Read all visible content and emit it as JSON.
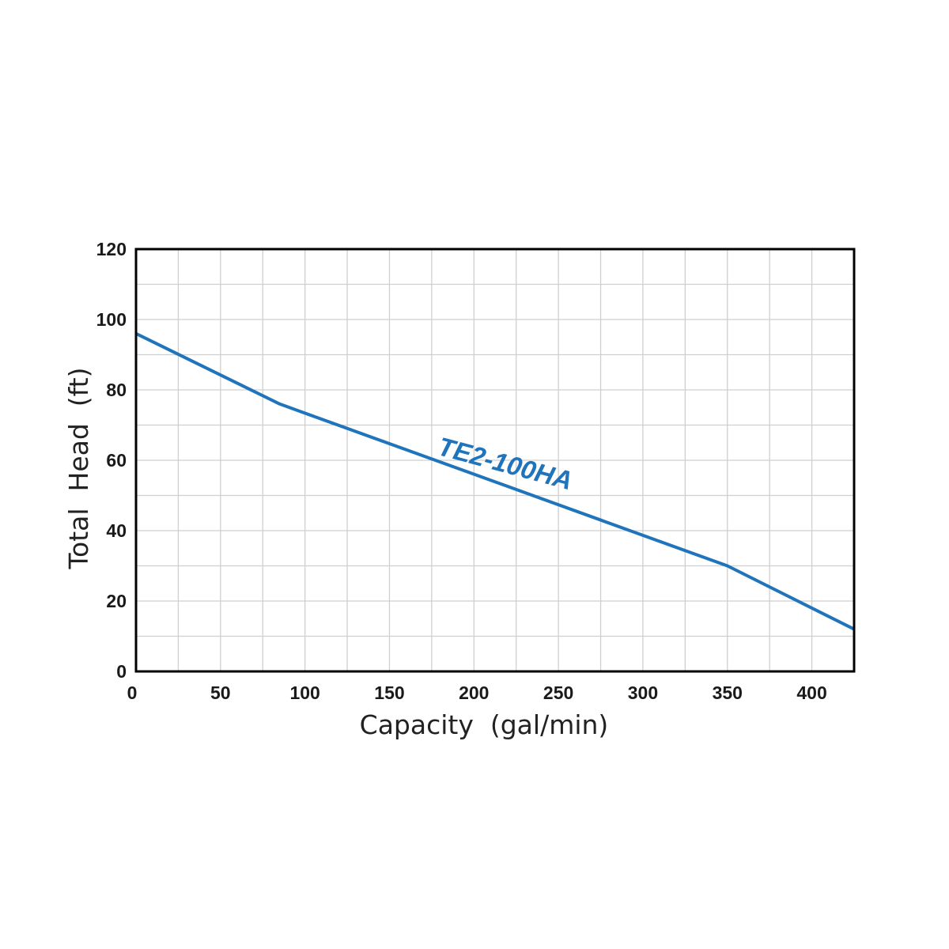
{
  "chart_data": {
    "type": "line",
    "title": "",
    "xlabel": "Capacity  (gal/min)",
    "ylabel": "Total  Head  (ft)",
    "xlim": [
      0,
      425
    ],
    "ylim": [
      0,
      120
    ],
    "x_ticks": [
      "0",
      "50",
      "100",
      "150",
      "200",
      "250",
      "300",
      "350",
      "400"
    ],
    "y_ticks": [
      "0",
      "20",
      "40",
      "60",
      "80",
      "100",
      "120"
    ],
    "grid": true,
    "legend": "none",
    "series": [
      {
        "name": "TE2-100HA",
        "color": "#1f74bc",
        "x": [
          0,
          85,
          350,
          425
        ],
        "y": [
          96,
          76,
          30,
          12
        ]
      }
    ]
  },
  "colors": {
    "series": "#1f74bc",
    "grid": "#cfcfcf",
    "frame": "#000000"
  }
}
